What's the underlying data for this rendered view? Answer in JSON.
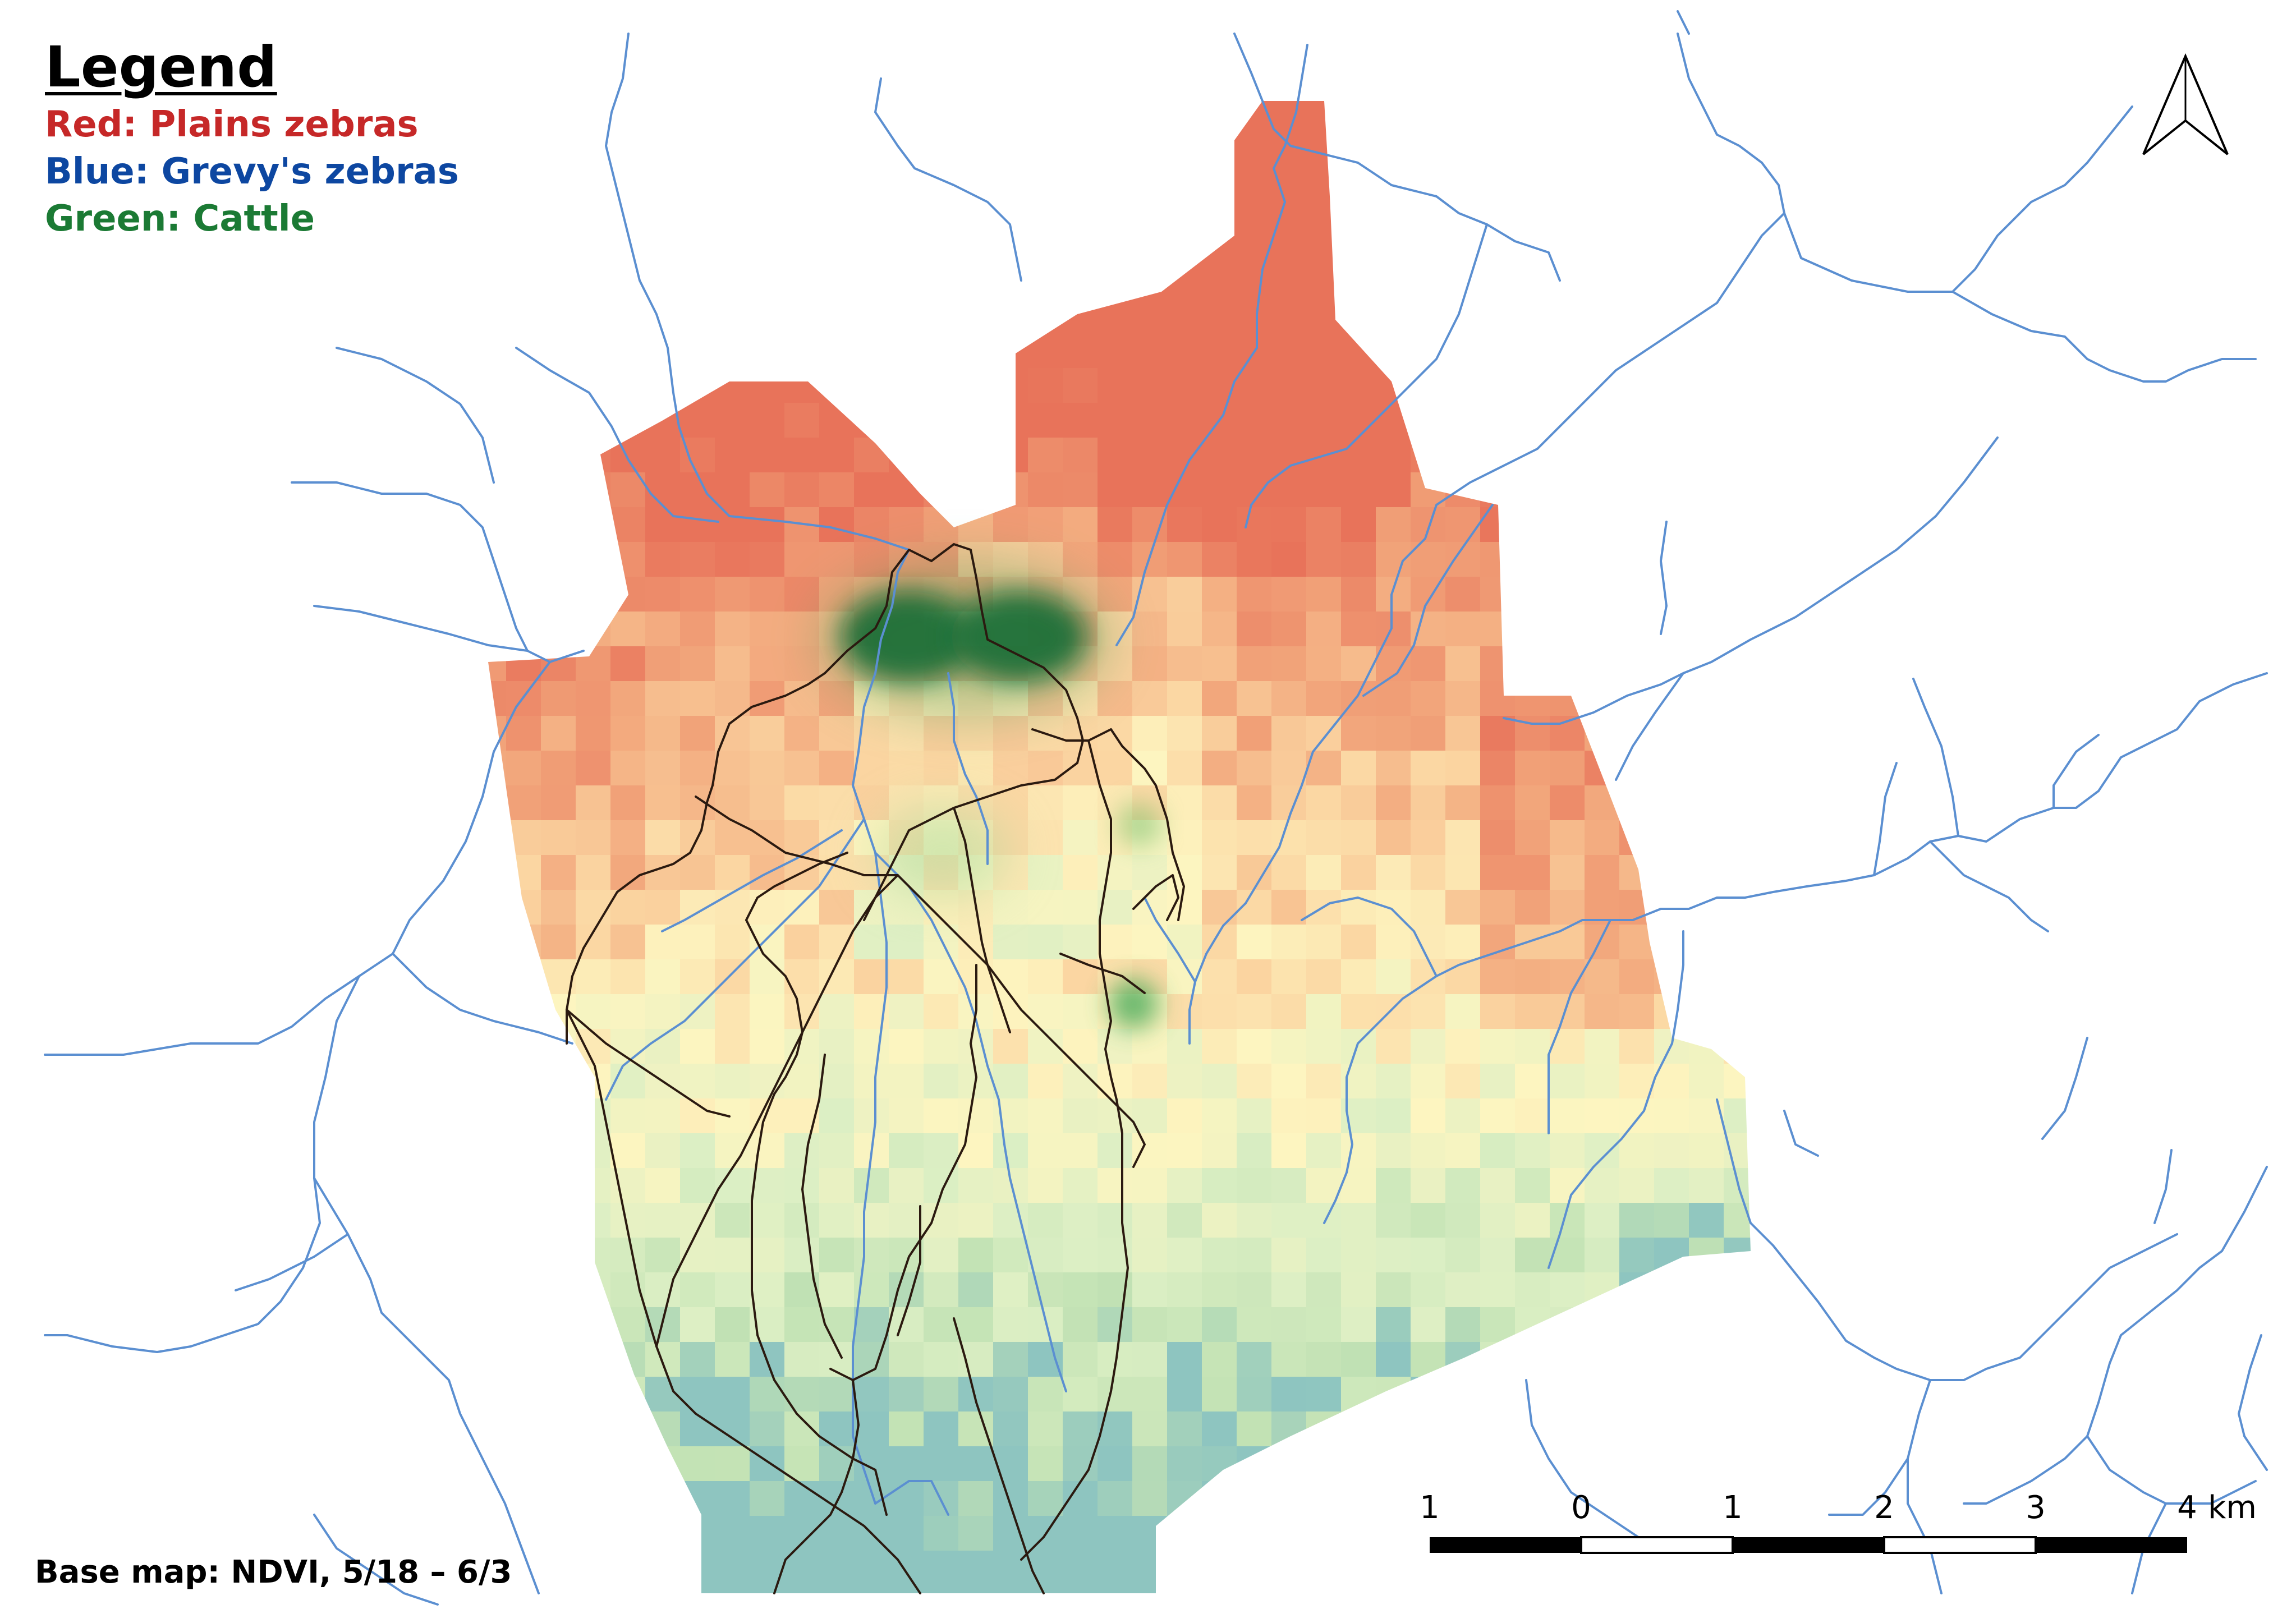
{
  "legend": {
    "title": "Legend",
    "items": [
      {
        "label": "Red: Plains zebras",
        "color": "#c62828"
      },
      {
        "label": "Blue: Grevy's zebras",
        "color": "#0d47a1"
      },
      {
        "label": "Green: Cattle",
        "color": "#1b7a34"
      }
    ]
  },
  "credit": "Base map: NDVI, 5/18 – 6/3",
  "scale_bar": {
    "labels": [
      "1",
      "0",
      "1",
      "2",
      "3",
      "4"
    ],
    "unit": "km"
  },
  "north_arrow_icon": "north-arrow-icon",
  "colors": {
    "river": "#5b8fd1",
    "roads": "#2b1a10",
    "ndvi_low": "#e8735a",
    "ndvi_mid": "#fdf5c0",
    "ndvi_high": "#c6e3b8",
    "ndvi_wet": "#6fb0c8",
    "cattle_density": "#0b5a2a"
  }
}
